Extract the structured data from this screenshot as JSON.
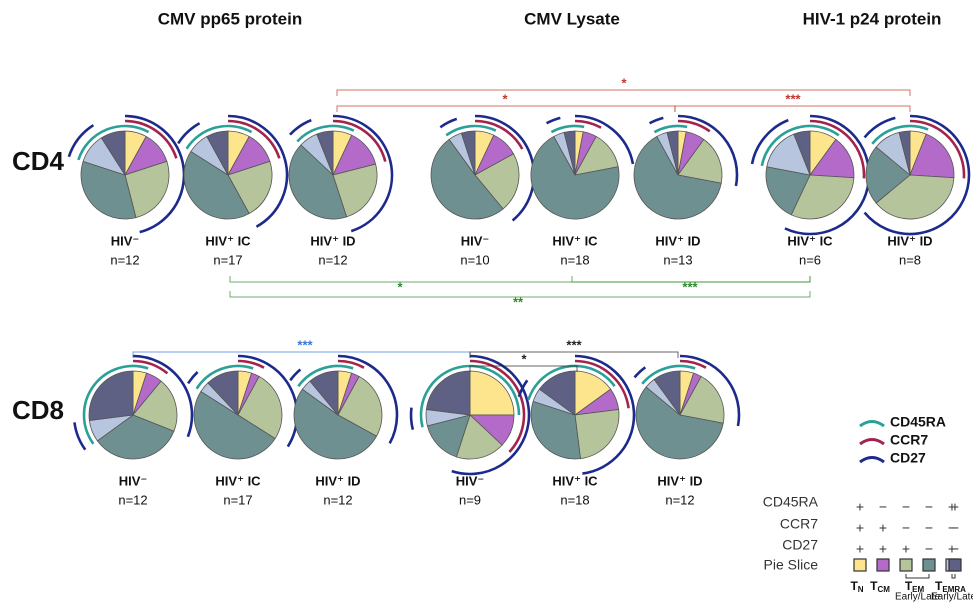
{
  "group_titles": [
    "CMV pp65 protein",
    "CMV Lysate",
    "HIV-1 p24 protein"
  ],
  "row_labels": [
    "CD4",
    "CD8"
  ],
  "chart_data": [
    {
      "type": "pie",
      "title": "HIV⁻",
      "subtitle": "n=12",
      "values": [
        8,
        12,
        26,
        34,
        11,
        9
      ]
    },
    {
      "type": "pie",
      "title": "HIV⁺ IC",
      "subtitle": "n=17",
      "values": [
        8,
        12,
        22,
        42,
        8,
        8
      ]
    },
    {
      "type": "pie",
      "title": "HIV⁺ ID",
      "subtitle": "n=12",
      "values": [
        7,
        14,
        24,
        42,
        7,
        6
      ]
    },
    {
      "type": "pie",
      "title": "HIV⁻",
      "subtitle": "n=10",
      "values": [
        7,
        10,
        22,
        51,
        5,
        5
      ]
    },
    {
      "type": "pie",
      "title": "HIV⁺ IC",
      "subtitle": "n=18",
      "values": [
        3,
        5,
        14,
        70,
        4,
        4
      ]
    },
    {
      "type": "pie",
      "title": "HIV⁺ ID",
      "subtitle": "n=13",
      "values": [
        3,
        7,
        18,
        64,
        4,
        4
      ]
    },
    {
      "type": "pie",
      "title": "HIV⁺ IC",
      "subtitle": "n=6",
      "values": [
        10,
        16,
        31,
        21,
        16,
        6
      ]
    },
    {
      "type": "pie",
      "title": "HIV⁺ ID",
      "subtitle": "n=8",
      "values": [
        6,
        20,
        38,
        22,
        10,
        4
      ]
    },
    {
      "type": "pie",
      "title": "HIV⁻",
      "subtitle": "n=12",
      "values": [
        5,
        6,
        20,
        34,
        8,
        27
      ]
    },
    {
      "type": "pie",
      "title": "HIV⁺ IC",
      "subtitle": "n=17",
      "values": [
        5,
        3,
        26,
        50,
        4,
        12
      ]
    },
    {
      "type": "pie",
      "title": "HIV⁺ ID",
      "subtitle": "n=12",
      "values": [
        5,
        3,
        25,
        52,
        4,
        11
      ]
    },
    {
      "type": "pie",
      "title": "HIV⁻",
      "subtitle": "n=9",
      "values": [
        25,
        12,
        18,
        16,
        6,
        23
      ]
    },
    {
      "type": "pie",
      "title": "HIV⁺ IC",
      "subtitle": "n=18",
      "values": [
        15,
        8,
        25,
        32,
        5,
        15
      ]
    },
    {
      "type": "pie",
      "title": "HIV⁺ ID",
      "subtitle": "n=12",
      "values": [
        5,
        3,
        20,
        58,
        4,
        10
      ]
    }
  ],
  "slice_colors": [
    "#fde58e",
    "#b36ac8",
    "#b6c49c",
    "#6f9090",
    "#b7c5de",
    "#5e6184"
  ],
  "markers": [
    {
      "name": "CD45RA",
      "color": "#2aa198",
      "signs": [
        "+",
        "−",
        "−",
        "−",
        "+",
        "+"
      ]
    },
    {
      "name": "CCR7",
      "color": "#a3234a",
      "signs": [
        "+",
        "+",
        "−",
        "−",
        "−",
        "−"
      ]
    },
    {
      "name": "CD27",
      "color": "#1c2a8c",
      "signs": [
        "+",
        "+",
        "+",
        "−",
        "+",
        "−"
      ]
    }
  ],
  "pie_slice_label": "Pie Slice",
  "subsets": [
    {
      "main": "T",
      "sub": "N"
    },
    {
      "main": "T",
      "sub": "CM"
    },
    {
      "main": "T",
      "sub": "EM",
      "note": "Early/Late"
    },
    {
      "main": "T",
      "sub": "EMRA",
      "note": "Early/Late"
    }
  ],
  "comparisons": [
    {
      "label": "*",
      "color": "#c0392b"
    },
    {
      "label": "*",
      "color": "#c0392b"
    },
    {
      "label": "***",
      "color": "#c0392b"
    },
    {
      "label": "*",
      "color": "#2e8b2e"
    },
    {
      "label": "***",
      "color": "#2e8b2e"
    },
    {
      "label": "**",
      "color": "#2e8b2e"
    },
    {
      "label": "***",
      "color": "#3c78d8"
    },
    {
      "label": "*",
      "color": "#222222"
    },
    {
      "label": "***",
      "color": "#222222"
    }
  ]
}
